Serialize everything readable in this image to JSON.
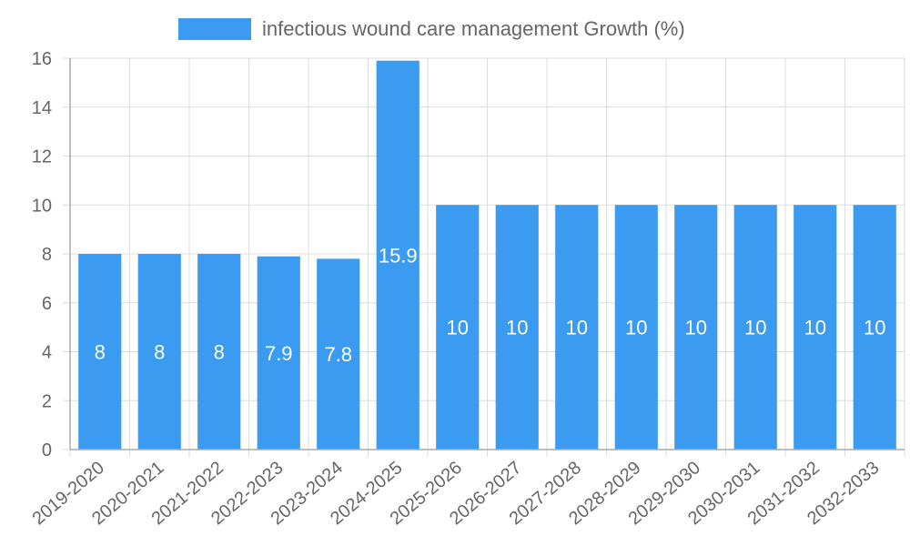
{
  "chart_data": {
    "type": "bar",
    "title": "",
    "xlabel": "",
    "ylabel": "",
    "legend": {
      "label": "infectious wound care management Growth (%)",
      "placement": "top-center"
    },
    "series": [
      {
        "name": "infectious wound care management Growth (%)",
        "color": "#3a9bf0",
        "values": [
          8,
          8,
          8,
          7.9,
          7.8,
          15.9,
          10,
          10,
          10,
          10,
          10,
          10,
          10,
          10
        ]
      }
    ],
    "categories": [
      "2019-2020",
      "2020-2021",
      "2021-2022",
      "2022-2023",
      "2023-2024",
      "2024-2025",
      "2025-2026",
      "2026-2027",
      "2027-2028",
      "2028-2029",
      "2029-2030",
      "2030-2031",
      "2031-2032",
      "2032-2033"
    ],
    "ylim": [
      0,
      16
    ],
    "yticks": [
      0,
      2,
      4,
      6,
      8,
      10,
      12,
      14,
      16
    ],
    "grid": true
  }
}
